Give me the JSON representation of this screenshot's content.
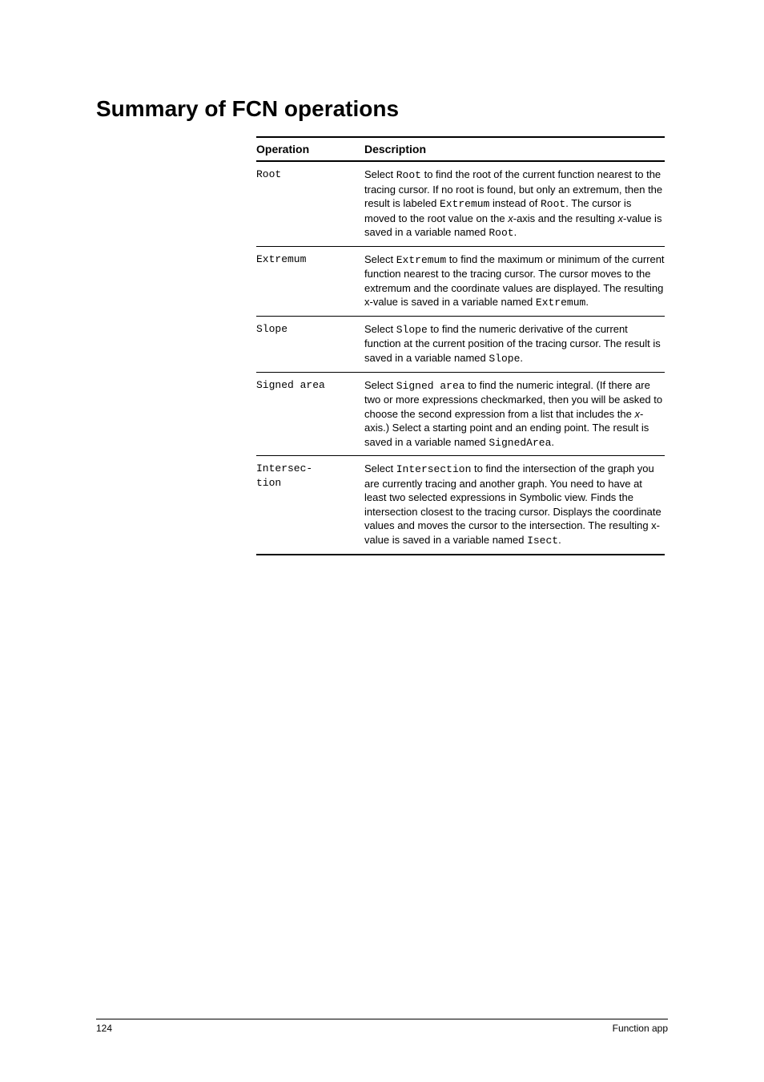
{
  "section_title": "Summary of FCN operations",
  "table": {
    "header": {
      "operation": "Operation",
      "description": "Description"
    },
    "rows": [
      {
        "op": "Root",
        "desc_segments": [
          {
            "t": "Select ",
            "c": ""
          },
          {
            "t": "Root",
            "c": "mono"
          },
          {
            "t": " to find the root of the current function nearest to the tracing cursor. If no root is found, but only an extremum, then the result is labeled ",
            "c": ""
          },
          {
            "t": "Extremum",
            "c": "mono"
          },
          {
            "t": " instead of ",
            "c": ""
          },
          {
            "t": "Root",
            "c": "mono"
          },
          {
            "t": ". The cursor is moved to the root value on the ",
            "c": ""
          },
          {
            "t": "x",
            "c": "ital"
          },
          {
            "t": "-axis and the resulting ",
            "c": ""
          },
          {
            "t": "x",
            "c": "ital"
          },
          {
            "t": "-value is saved in a variable named ",
            "c": ""
          },
          {
            "t": "Root",
            "c": "mono"
          },
          {
            "t": ".",
            "c": ""
          }
        ]
      },
      {
        "op": "Extremum",
        "desc_segments": [
          {
            "t": "Select ",
            "c": ""
          },
          {
            "t": "Extremum",
            "c": "mono"
          },
          {
            "t": " to find the maximum or minimum of the current function nearest to the tracing cursor. The cursor moves to the extremum and the coordinate values are displayed. The resulting x-value is saved in a variable named ",
            "c": ""
          },
          {
            "t": "Extremum",
            "c": "mono"
          },
          {
            "t": ".",
            "c": ""
          }
        ]
      },
      {
        "op": "Slope",
        "desc_segments": [
          {
            "t": "Select ",
            "c": ""
          },
          {
            "t": "Slope",
            "c": "mono"
          },
          {
            "t": " to find the numeric derivative of the current function at the current position of the tracing cursor. The result is saved in a variable named ",
            "c": ""
          },
          {
            "t": "Slope",
            "c": "mono"
          },
          {
            "t": ".",
            "c": ""
          }
        ]
      },
      {
        "op": "Signed area",
        "desc_segments": [
          {
            "t": "Select ",
            "c": ""
          },
          {
            "t": "Signed area",
            "c": "mono"
          },
          {
            "t": " to find the numeric integral. (If there are two or more expressions checkmarked, then you will be asked to choose the second expression from a list that includes the ",
            "c": ""
          },
          {
            "t": "x",
            "c": "ital"
          },
          {
            "t": "-axis.) Select a starting point and an ending point. The result is saved in a variable named ",
            "c": ""
          },
          {
            "t": "SignedArea",
            "c": "mono"
          },
          {
            "t": ".",
            "c": ""
          }
        ]
      },
      {
        "op": "Intersec-\ntion",
        "desc_segments": [
          {
            "t": "Select ",
            "c": ""
          },
          {
            "t": "Intersection",
            "c": "mono"
          },
          {
            "t": " to find the intersection of the graph you are currently tracing and another graph. You need to have at least two selected expressions in Symbolic view. Finds the intersection closest to the tracing cursor. Displays the coordinate values and moves the cursor to the intersection. The resulting x-value is saved in a variable named ",
            "c": ""
          },
          {
            "t": "Isect",
            "c": "mono"
          },
          {
            "t": ".",
            "c": ""
          }
        ]
      }
    ]
  },
  "footer": {
    "page_number": "124",
    "chapter": "Function app"
  }
}
